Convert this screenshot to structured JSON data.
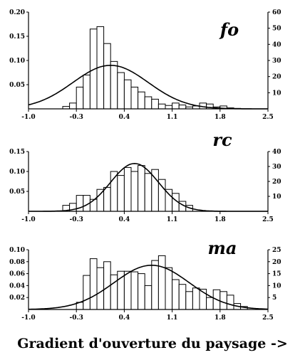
{
  "xlabel": "Gradient d'ouverture du paysage ->",
  "chart_data": [
    {
      "type": "bar",
      "title": "fo",
      "bin_width": 0.1,
      "x": [
        -0.5,
        -0.4,
        -0.3,
        -0.2,
        -0.1,
        0.0,
        0.1,
        0.2,
        0.3,
        0.4,
        0.5,
        0.6,
        0.7,
        0.8,
        0.9,
        1.0,
        1.1,
        1.2,
        1.3,
        1.4,
        1.5,
        1.6,
        1.7,
        1.8,
        1.9,
        2.0,
        2.1,
        2.2
      ],
      "values": [
        0.005,
        0.012,
        0.045,
        0.07,
        0.165,
        0.17,
        0.135,
        0.098,
        0.075,
        0.06,
        0.045,
        0.035,
        0.025,
        0.02,
        0.01,
        0.007,
        0.012,
        0.008,
        0.004,
        0.006,
        0.012,
        0.01,
        0.004,
        0.006,
        0.002,
        0.001,
        0.0,
        0.0
      ],
      "curve": {
        "type": "normal",
        "peak": 0.09,
        "mean": 0.2,
        "sd": 0.55
      },
      "xlim": [
        -1.0,
        2.5
      ],
      "xticks": [
        "-1.0",
        "-0.3",
        "0.4",
        "1.1",
        "1.8",
        "2.5"
      ],
      "ylim": [
        0,
        0.2
      ],
      "yticks_left": [
        "0.05",
        "0.10",
        "0.15",
        "0.20"
      ],
      "yticks_right": [
        "10",
        "20",
        "30",
        "40",
        "50",
        "60"
      ],
      "ylim_right": [
        0,
        60
      ]
    },
    {
      "type": "bar",
      "title": "rc",
      "bin_width": 0.1,
      "x": [
        -0.5,
        -0.4,
        -0.3,
        -0.2,
        -0.1,
        0.0,
        0.1,
        0.2,
        0.3,
        0.4,
        0.5,
        0.6,
        0.7,
        0.8,
        0.9,
        1.0,
        1.1,
        1.2,
        1.3
      ],
      "values": [
        0.015,
        0.02,
        0.04,
        0.04,
        0.03,
        0.055,
        0.06,
        0.1,
        0.09,
        0.11,
        0.1,
        0.115,
        0.095,
        0.105,
        0.08,
        0.055,
        0.045,
        0.025,
        0.015
      ],
      "curve": {
        "type": "normal",
        "peak": 0.12,
        "mean": 0.55,
        "sd": 0.35
      },
      "xlim": [
        -1.0,
        2.5
      ],
      "xticks": [
        "-1.0",
        "-0.3",
        "0.4",
        "1.1",
        "1.8",
        "2.5"
      ],
      "ylim": [
        0,
        0.15
      ],
      "yticks_left": [
        "0.05",
        "0.10",
        "0.15"
      ],
      "yticks_right": [
        "10",
        "20",
        "30",
        "40"
      ],
      "ylim_right": [
        0,
        40
      ]
    },
    {
      "type": "bar",
      "title": "ma",
      "bin_width": 0.1,
      "x": [
        -0.3,
        -0.2,
        -0.1,
        0.0,
        0.1,
        0.2,
        0.3,
        0.4,
        0.5,
        0.6,
        0.7,
        0.8,
        0.9,
        1.0,
        1.1,
        1.2,
        1.3,
        1.4,
        1.5,
        1.6,
        1.7,
        1.8,
        1.9,
        2.0,
        2.1
      ],
      "values": [
        0.012,
        0.057,
        0.085,
        0.07,
        0.08,
        0.058,
        0.064,
        0.064,
        0.063,
        0.06,
        0.04,
        0.082,
        0.09,
        0.07,
        0.05,
        0.042,
        0.03,
        0.036,
        0.034,
        0.02,
        0.033,
        0.03,
        0.024,
        0.01,
        0.005
      ],
      "curve": {
        "type": "normal",
        "peak": 0.074,
        "mean": 0.8,
        "sd": 0.55
      },
      "xlim": [
        -1.0,
        2.5
      ],
      "xticks": [
        "-1.0",
        "-0.3",
        "0.4",
        "1.1",
        "1.8",
        "2.5"
      ],
      "ylim": [
        0,
        0.1
      ],
      "yticks_left": [
        "0.02",
        "0.04",
        "0.06",
        "0.08",
        "0.10"
      ],
      "yticks_right": [
        "5",
        "10",
        "15",
        "20",
        "25"
      ],
      "ylim_right": [
        0,
        25
      ]
    }
  ]
}
